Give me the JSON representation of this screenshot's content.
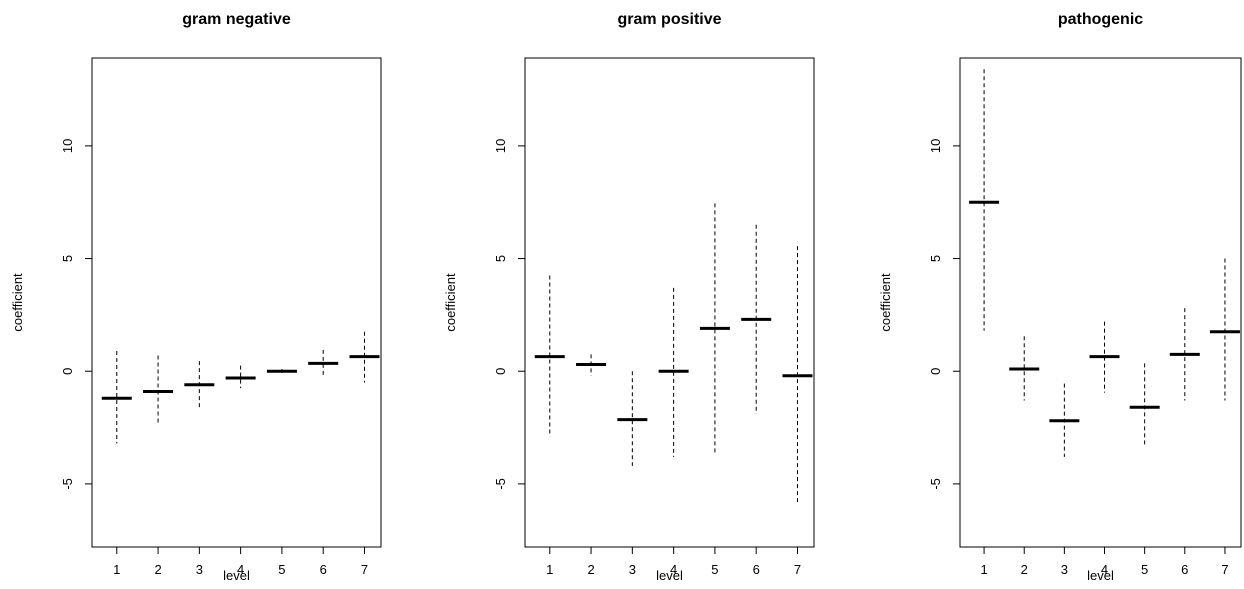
{
  "chart_data": [
    {
      "type": "scatter",
      "title": "gram negative",
      "xlabel": "level",
      "ylabel": "coefficient",
      "x": [
        1,
        2,
        3,
        4,
        5,
        6,
        7
      ],
      "x_tick_labels": [
        "1",
        "2",
        "3",
        "4",
        "5",
        "6",
        "7"
      ],
      "y_tick_labels": [
        "-5",
        "0",
        "5",
        "10"
      ],
      "y_ticks": [
        -5,
        0,
        5,
        10
      ],
      "xlim": [
        0.4,
        7.4
      ],
      "ylim": [
        -7.8,
        13.9
      ],
      "estimate": [
        -1.2,
        -0.9,
        -0.6,
        -0.3,
        0.0,
        0.35,
        0.65
      ],
      "lower": [
        -3.2,
        -2.4,
        -1.6,
        -0.75,
        -0.1,
        -0.2,
        -0.5
      ],
      "upper": [
        0.9,
        0.7,
        0.45,
        0.25,
        0.1,
        0.95,
        1.75
      ],
      "grid": false
    },
    {
      "type": "scatter",
      "title": "gram positive",
      "xlabel": "level",
      "ylabel": "coefficient",
      "x": [
        1,
        2,
        3,
        4,
        5,
        6,
        7
      ],
      "x_tick_labels": [
        "1",
        "2",
        "3",
        "4",
        "5",
        "6",
        "7"
      ],
      "y_tick_labels": [
        "-5",
        "0",
        "5",
        "10"
      ],
      "y_ticks": [
        -5,
        0,
        5,
        10
      ],
      "xlim": [
        0.4,
        7.4
      ],
      "ylim": [
        -7.8,
        13.9
      ],
      "estimate": [
        0.65,
        0.3,
        -2.15,
        0.0,
        1.9,
        2.3,
        -0.2
      ],
      "lower": [
        -2.9,
        -0.2,
        -4.2,
        -3.8,
        -3.6,
        -1.9,
        -5.9
      ],
      "upper": [
        4.25,
        0.75,
        0.0,
        3.7,
        7.45,
        6.5,
        5.55
      ],
      "grid": false
    },
    {
      "type": "scatter",
      "title": "pathogenic",
      "xlabel": "level",
      "ylabel": "coefficient",
      "x": [
        1,
        2,
        3,
        4,
        5,
        6,
        7
      ],
      "x_tick_labels": [
        "1",
        "2",
        "3",
        "4",
        "5",
        "6",
        "7"
      ],
      "y_tick_labels": [
        "-5",
        "0",
        "5",
        "10"
      ],
      "y_ticks": [
        -5,
        0,
        5,
        10
      ],
      "xlim": [
        0.4,
        7.4
      ],
      "ylim": [
        -7.8,
        13.9
      ],
      "estimate": [
        7.5,
        0.1,
        -2.2,
        0.65,
        -1.6,
        0.75,
        1.75
      ],
      "lower": [
        1.8,
        -1.3,
        -3.8,
        -0.95,
        -3.35,
        -1.3,
        -1.3
      ],
      "upper": [
        13.4,
        1.55,
        -0.55,
        2.2,
        0.35,
        2.8,
        5.0
      ],
      "grid": false
    }
  ]
}
